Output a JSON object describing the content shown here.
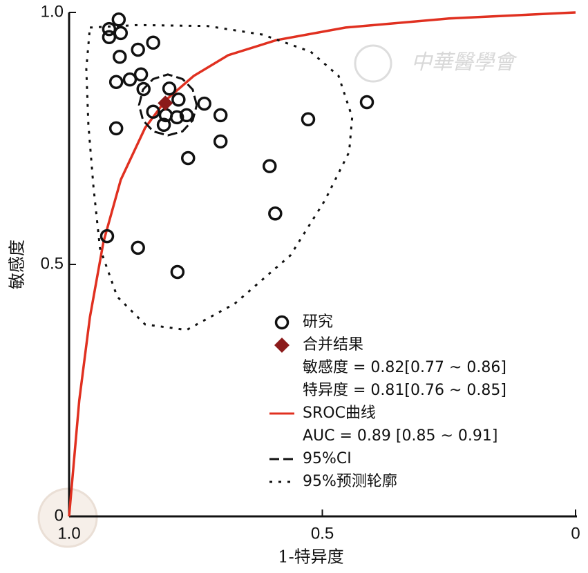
{
  "chart_data": {
    "type": "sroc",
    "x_label": "1-特异度",
    "y_label": "敏感度",
    "watermark": "中華醫學會",
    "xlim": [
      1,
      0
    ],
    "ylim": [
      0,
      1
    ],
    "xticks": [
      {
        "value": 1,
        "label": "1.0"
      },
      0.5,
      0
    ],
    "yticks": [
      0,
      0.5,
      {
        "value": 1,
        "label": "1.0"
      }
    ],
    "series": [
      {
        "name": "研究",
        "kind": "scatter",
        "color": "#111111",
        "x": [
          0.921,
          0.902,
          0.898,
          0.921,
          0.9,
          0.864,
          0.834,
          0.858,
          0.907,
          0.88,
          0.853,
          0.802,
          0.784,
          0.834,
          0.809,
          0.787,
          0.768,
          0.813,
          0.733,
          0.701,
          0.907,
          0.701,
          0.765,
          0.528,
          0.412,
          0.604,
          0.593,
          0.925,
          0.864,
          0.786
        ],
        "values": [
          0.967,
          0.986,
          0.959,
          0.951,
          0.912,
          0.926,
          0.94,
          0.877,
          0.862,
          0.867,
          0.848,
          0.849,
          0.827,
          0.803,
          0.796,
          0.792,
          0.796,
          0.777,
          0.819,
          0.796,
          0.77,
          0.744,
          0.711,
          0.788,
          0.822,
          0.695,
          0.601,
          0.556,
          0.533,
          0.485
        ]
      },
      {
        "name": "合并结果",
        "kind": "diamond",
        "color": "#8b1a1a",
        "x": [
          0.81
        ],
        "values": [
          0.82
        ],
        "notes": [
          "敏感度 = 0.82[0.77 ~ 0.86]",
          "特异度 = 0.81[0.76 ~ 0.85]"
        ]
      },
      {
        "name": "SROC曲线",
        "kind": "line",
        "color": "#e03020",
        "x": [
          1,
          0.98,
          0.959,
          0.932,
          0.898,
          0.85,
          0.809,
          0.754,
          0.686,
          0.591,
          0.454,
          0.25,
          0
        ],
        "values": [
          0,
          0.23,
          0.395,
          0.545,
          0.668,
          0.771,
          0.826,
          0.874,
          0.915,
          0.945,
          0.97,
          0.988,
          1
        ],
        "notes": [
          "AUC = 0.89 [0.85 ~ 0.91]"
        ]
      },
      {
        "name": "95%CI",
        "kind": "line",
        "dash": "dashed",
        "color": "#111111",
        "x": [
          0.748,
          0.756,
          0.776,
          0.805,
          0.834,
          0.854,
          0.862,
          0.854,
          0.834,
          0.805,
          0.776,
          0.756,
          0.748
        ],
        "values": [
          0.816,
          0.847,
          0.868,
          0.877,
          0.868,
          0.847,
          0.816,
          0.786,
          0.764,
          0.756,
          0.764,
          0.786,
          0.816
        ]
      },
      {
        "name": "95%预测轮廓",
        "kind": "line",
        "dash": "dotted",
        "color": "#111111",
        "x": [
          0.959,
          0.864,
          0.727,
          0.618,
          0.523,
          0.468,
          0.441,
          0.447,
          0.495,
          0.563,
          0.673,
          0.768,
          0.85,
          0.905,
          0.939,
          0.952,
          0.962,
          0.966,
          0.959
        ],
        "values": [
          0.97,
          0.975,
          0.973,
          0.956,
          0.922,
          0.874,
          0.792,
          0.723,
          0.627,
          0.518,
          0.422,
          0.37,
          0.381,
          0.436,
          0.532,
          0.655,
          0.778,
          0.888,
          0.97
        ]
      }
    ]
  }
}
